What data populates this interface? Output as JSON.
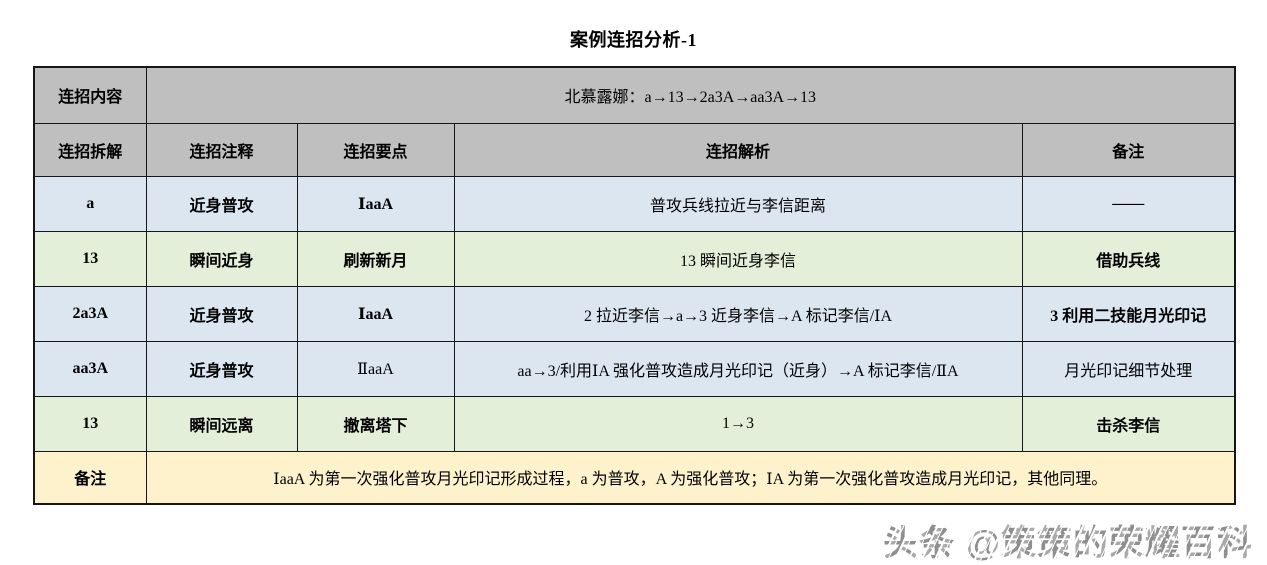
{
  "title": "案例连招分析-1",
  "table": {
    "combo_row": {
      "label": "连招内容",
      "content": "北慕露娜：a→13→2a3A→aa3A→13"
    },
    "headers": {
      "breakdown": "连招拆解",
      "annotation": "连招注释",
      "keypoint": "连招要点",
      "analysis": "连招解析",
      "remark": "备注"
    },
    "rows": [
      {
        "breakdown": "a",
        "annotation": "近身普攻",
        "keypoint": "ⅠaaA",
        "analysis": "普攻兵线拉近与李信距离",
        "remark": "——"
      },
      {
        "breakdown": "13",
        "annotation": "瞬间近身",
        "keypoint": "刷新新月",
        "analysis": "13 瞬间近身李信",
        "remark": "借助兵线"
      },
      {
        "breakdown": "2a3A",
        "annotation": "近身普攻",
        "keypoint": "ⅠaaA",
        "analysis": "2 拉近李信→a→3 近身李信→A 标记李信/ⅠA",
        "remark": "3 利用二技能月光印记"
      },
      {
        "breakdown": "aa3A",
        "annotation": "近身普攻",
        "keypoint": "ⅡaaA",
        "analysis": "aa→3/利用ⅠA 强化普攻造成月光印记（近身）→A 标记李信/ⅡA",
        "remark": "月光印记细节处理"
      },
      {
        "breakdown": "13",
        "annotation": "瞬间远离",
        "keypoint": "撤离塔下",
        "analysis": "1→3",
        "remark": "击杀李信"
      }
    ],
    "note_row": {
      "label": "备注",
      "content": "ⅠaaA 为第一次强化普攻月光印记形成过程，a 为普攻，A 为强化普攻；ⅠA 为第一次强化普攻造成月光印记，其他同理。"
    }
  },
  "watermark": "头条 @策策的荣耀百科",
  "colors": {
    "header_gray": "#bfbfbf",
    "row_blue": "#dce6f1",
    "row_green": "#e4efda",
    "note_yellow": "#fdf2cc",
    "border": "#161616",
    "watermark_gray": "#9a9a9a"
  }
}
